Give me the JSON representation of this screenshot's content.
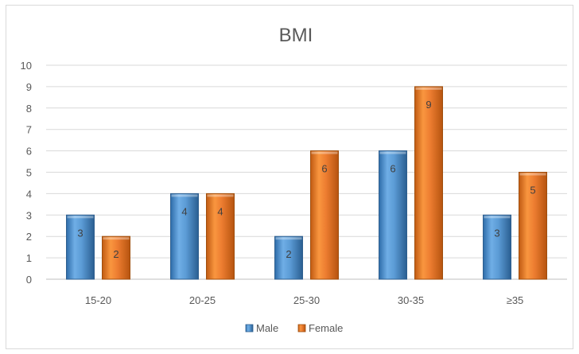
{
  "chart_data": {
    "type": "bar",
    "title": "BMI",
    "categories": [
      "15-20",
      "20-25",
      "25-30",
      "30-35",
      "≥35"
    ],
    "series": [
      {
        "name": "Male",
        "values": [
          3,
          4,
          2,
          6,
          3
        ],
        "color": "#5B9BD5"
      },
      {
        "name": "Female",
        "values": [
          2,
          4,
          6,
          9,
          5
        ],
        "color": "#ED7D31"
      }
    ],
    "ylim": [
      0,
      10
    ],
    "yticks": [
      0,
      1,
      2,
      3,
      4,
      5,
      6,
      7,
      8,
      9,
      10
    ],
    "grid": true,
    "legend": "bottom",
    "data_labels": true
  }
}
